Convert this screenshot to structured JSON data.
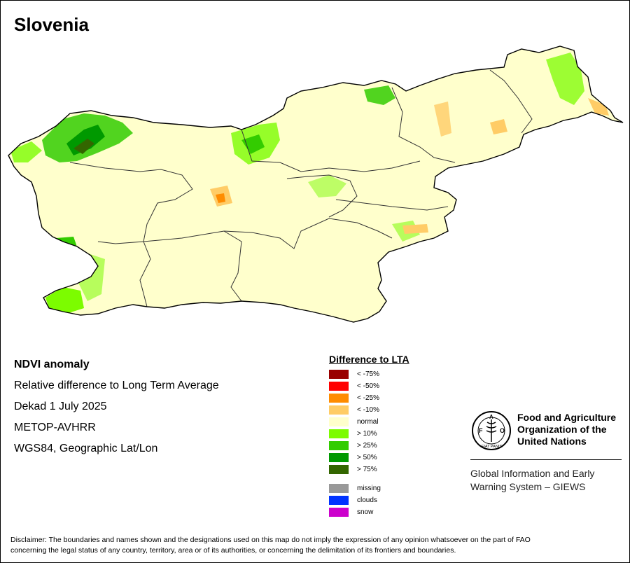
{
  "map": {
    "title": "Slovenia",
    "colors": {
      "normal": "#ffffcc",
      "positive_10": "#7cfc00",
      "positive_25": "#33cc00",
      "positive_50": "#009900",
      "positive_75": "#336600",
      "negative_10": "#ffcc66",
      "negative_25": "#ff8c00"
    }
  },
  "info": {
    "title": "NDVI anomaly",
    "subtitle": "Relative difference to Long Term Average",
    "period": "Dekad 1 July 2025",
    "sensor": "METOP-AVHRR",
    "projection": "WGS84, Geographic Lat/Lon"
  },
  "legend": {
    "title": "Difference to LTA",
    "items": [
      {
        "label": "< -75%",
        "color": "#990000"
      },
      {
        "label": "< -50%",
        "color": "#ff0000"
      },
      {
        "label": "< -25%",
        "color": "#ff8c00"
      },
      {
        "label": "< -10%",
        "color": "#ffcc66"
      },
      {
        "label": "normal",
        "color": "#ffffcc"
      },
      {
        "label": "> 10%",
        "color": "#7cfc00"
      },
      {
        "label": "> 25%",
        "color": "#33cc00"
      },
      {
        "label": "> 50%",
        "color": "#009900"
      },
      {
        "label": "> 75%",
        "color": "#336600"
      }
    ],
    "extra": [
      {
        "label": "missing",
        "color": "#999999"
      },
      {
        "label": "clouds",
        "color": "#0033ff"
      },
      {
        "label": "snow",
        "color": "#cc00cc"
      }
    ]
  },
  "org": {
    "fao_name_line1": "Food and Agriculture",
    "fao_name_line2": "Organization of the",
    "fao_name_line3": "United Nations",
    "logo_text": "FAO",
    "logo_motto": "FIAT PANIS",
    "giews_line1": "Global Information and Early",
    "giews_line2": "Warning System – GIEWS"
  },
  "disclaimer": {
    "line1": "Disclaimer: The boundaries and names shown and the designations used on this map do not imply the expression of any opinion whatsoever on the part of FAO",
    "line2": "concerning the legal status of any country, territory, area or of its authorities, or concerning the delimitation of its frontiers and boundaries."
  }
}
